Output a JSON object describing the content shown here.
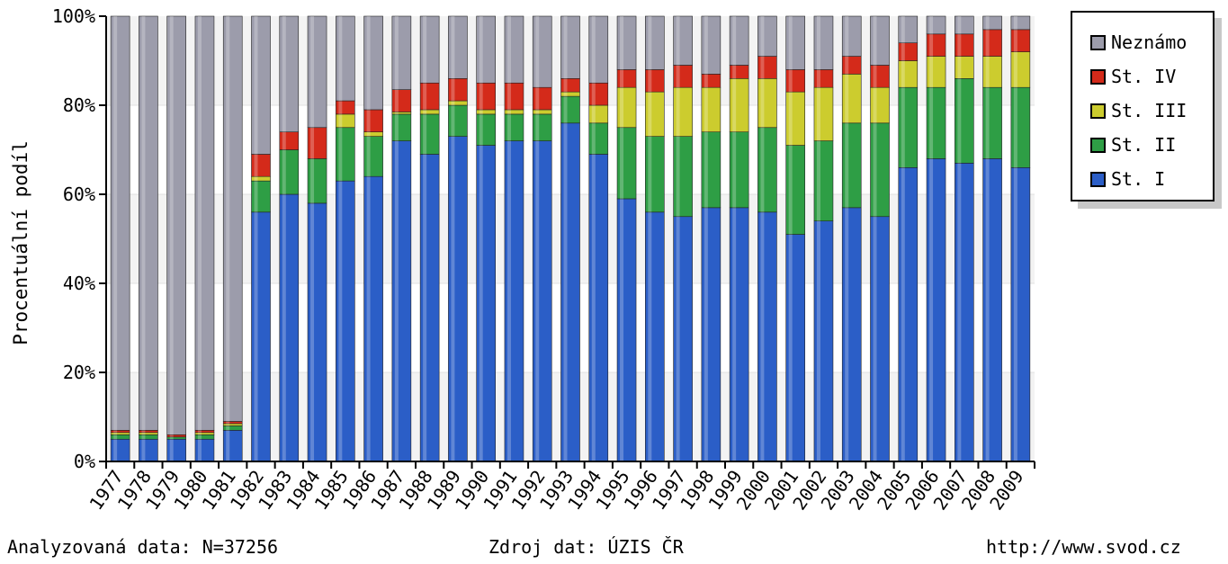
{
  "chart_data": {
    "type": "bar",
    "stacked": true,
    "title": "",
    "ylabel": "Procentuální podíl",
    "xlabel": "",
    "ylim": [
      0,
      100
    ],
    "yticks": [
      "0%",
      "20%",
      "40%",
      "60%",
      "80%",
      "100%"
    ],
    "grid": "horizontal",
    "legend_position": "top-right",
    "categories": [
      "1977",
      "1978",
      "1979",
      "1980",
      "1981",
      "1982",
      "1983",
      "1984",
      "1985",
      "1986",
      "1987",
      "1988",
      "1989",
      "1990",
      "1991",
      "1992",
      "1993",
      "1994",
      "1995",
      "1996",
      "1997",
      "1998",
      "1999",
      "2000",
      "2001",
      "2002",
      "2003",
      "2004",
      "2005",
      "2006",
      "2007",
      "2008",
      "2009"
    ],
    "series": [
      {
        "name": "St. I",
        "color": "#2b5ec7",
        "values": [
          5,
          5,
          5,
          5,
          7,
          56,
          60,
          58,
          63,
          64,
          72,
          69,
          73,
          71,
          72,
          72,
          76,
          69,
          59,
          56,
          55,
          57,
          57,
          56,
          51,
          54,
          57,
          55,
          66,
          68,
          67,
          68,
          66
        ]
      },
      {
        "name": "St. II",
        "color": "#2e9e45",
        "values": [
          1,
          1,
          0.5,
          1,
          1,
          7,
          10,
          10,
          12,
          9,
          6,
          9,
          7,
          7,
          6,
          6,
          6,
          7,
          16,
          17,
          18,
          17,
          17,
          19,
          20,
          18,
          19,
          21,
          18,
          16,
          19,
          16,
          18
        ]
      },
      {
        "name": "St. III",
        "color": "#cccc2e",
        "values": [
          0.5,
          0.5,
          0,
          0.5,
          0.5,
          1,
          0,
          0,
          3,
          1,
          0.5,
          1,
          1,
          1,
          1,
          1,
          1,
          4,
          9,
          10,
          11,
          10,
          12,
          11,
          12,
          12,
          11,
          8,
          6,
          7,
          5,
          7,
          8
        ]
      },
      {
        "name": "St. IV",
        "color": "#d42a1a",
        "values": [
          0.5,
          0.5,
          0.5,
          0.5,
          0.5,
          5,
          4,
          7,
          3,
          5,
          5,
          6,
          5,
          6,
          6,
          5,
          3,
          5,
          4,
          5,
          5,
          3,
          3,
          5,
          5,
          4,
          4,
          5,
          4,
          5,
          5,
          6,
          5
        ]
      },
      {
        "name": "Neznámo",
        "color": "#9c9cab",
        "values": [
          93,
          93,
          94,
          93,
          91,
          31,
          26,
          25,
          19,
          21,
          16.5,
          15,
          14,
          15,
          15,
          16,
          14,
          15,
          12,
          12,
          11,
          13,
          11,
          9,
          12,
          12,
          9,
          11,
          6,
          4,
          4,
          3,
          3
        ]
      }
    ]
  },
  "footer": {
    "left": "Analyzovaná data: N=37256",
    "center": "Zdroj dat: ÚZIS ČR",
    "right": "http://www.svod.cz"
  }
}
